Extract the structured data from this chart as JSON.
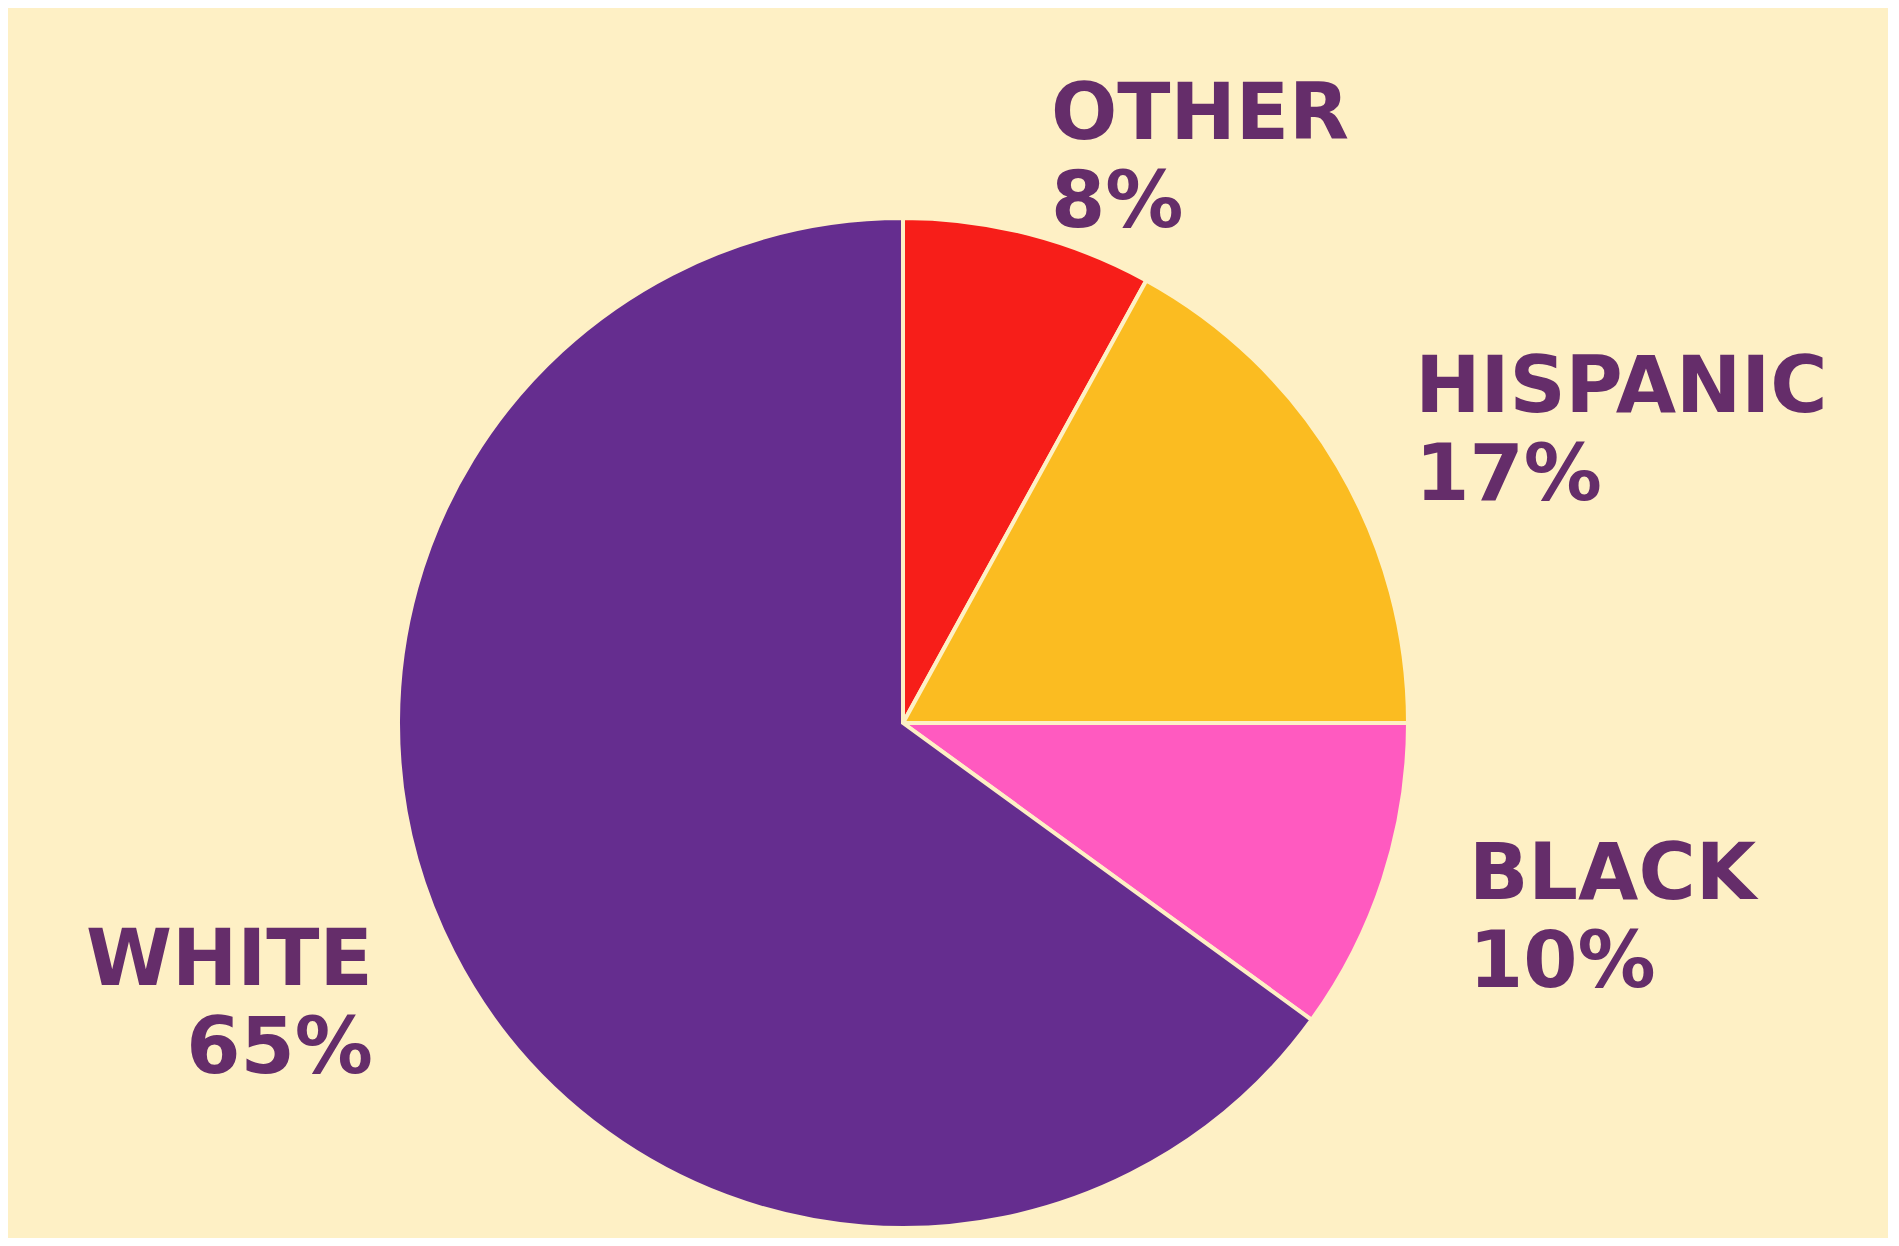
{
  "chart_data": {
    "type": "pie",
    "categories": [
      "OTHER",
      "HISPANIC",
      "BLACK",
      "WHITE"
    ],
    "values": [
      8,
      17,
      10,
      65
    ],
    "colors": [
      "#f71e19",
      "#fbbc21",
      "#ff5ac0",
      "#652d8f"
    ],
    "value_labels": [
      "8%",
      "17%",
      "10%",
      "65%"
    ]
  }
}
